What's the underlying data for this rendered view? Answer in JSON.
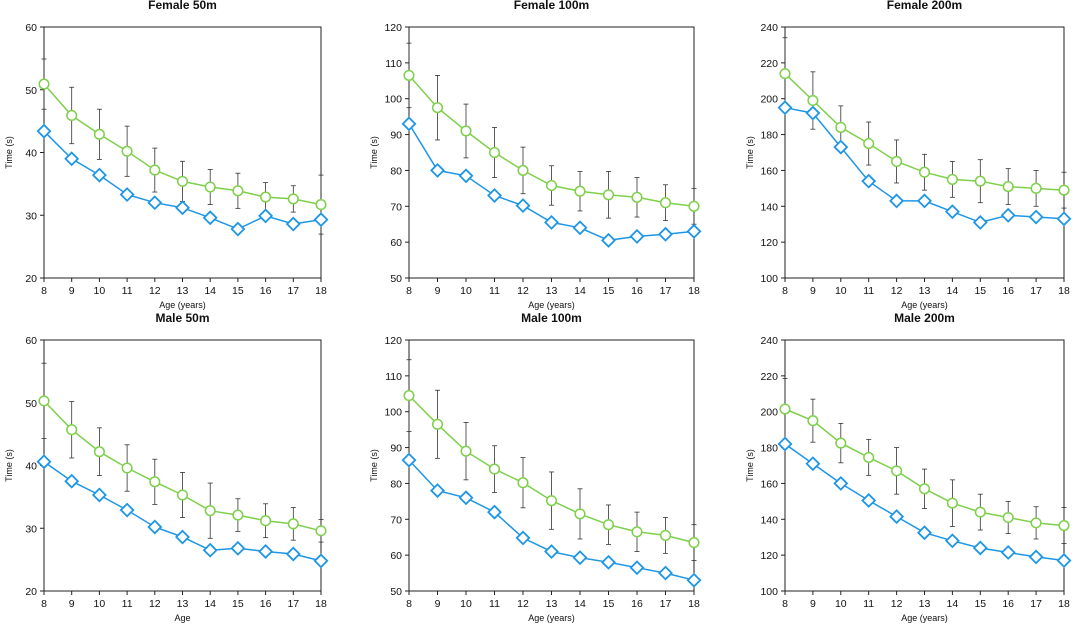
{
  "chart_data": [
    {
      "type": "line",
      "title": "Female 50m",
      "xlabel": "Age (years)",
      "ylabel": "Time (s)",
      "ylim": [
        20,
        60
      ],
      "yticks": [
        20,
        30,
        40,
        50,
        60
      ],
      "x": [
        8,
        9,
        10,
        11,
        12,
        13,
        14,
        15,
        16,
        17,
        18
      ],
      "series": [
        {
          "name": "green-circles",
          "marker": "circle",
          "color": "#7ed04b",
          "values": [
            50.9,
            45.9,
            42.9,
            40.2,
            37.2,
            35.4,
            34.5,
            33.9,
            32.9,
            32.6,
            31.7
          ],
          "err": [
            4.0,
            4.5,
            4.0,
            4.0,
            3.5,
            3.2,
            2.8,
            2.8,
            2.3,
            2.1,
            4.7
          ]
        },
        {
          "name": "blue-diamonds",
          "marker": "diamond",
          "color": "#1e96e6",
          "values": [
            43.4,
            39.0,
            36.4,
            33.3,
            32.0,
            31.2,
            29.6,
            27.8,
            29.9,
            28.6,
            29.3
          ]
        }
      ]
    },
    {
      "type": "line",
      "title": "Female 100m",
      "xlabel": "Age (years)",
      "ylabel": "Time (s)",
      "ylim": [
        50,
        120
      ],
      "yticks": [
        50,
        60,
        70,
        80,
        90,
        100,
        110,
        120
      ],
      "x": [
        8,
        9,
        10,
        11,
        12,
        13,
        14,
        15,
        16,
        17,
        18
      ],
      "series": [
        {
          "name": "green-circles",
          "marker": "circle",
          "color": "#7ed04b",
          "values": [
            106.5,
            97.5,
            91.0,
            85.0,
            80.0,
            75.8,
            74.2,
            73.2,
            72.5,
            71.0,
            70.0
          ],
          "err": [
            9.0,
            9.0,
            7.5,
            7.0,
            6.5,
            5.5,
            5.5,
            6.5,
            5.5,
            5.0,
            5.0
          ]
        },
        {
          "name": "blue-diamonds",
          "marker": "diamond",
          "color": "#1e96e6",
          "values": [
            93.0,
            80.0,
            78.5,
            73.0,
            70.2,
            65.5,
            64.0,
            60.5,
            61.6,
            62.2,
            63.0
          ]
        }
      ]
    },
    {
      "type": "line",
      "title": "Female 200m",
      "xlabel": "Age (years)",
      "ylabel": "Time (s)",
      "ylim": [
        100,
        240
      ],
      "yticks": [
        100,
        120,
        140,
        160,
        180,
        200,
        220,
        240
      ],
      "x": [
        8,
        9,
        10,
        11,
        12,
        13,
        14,
        15,
        16,
        17,
        18
      ],
      "series": [
        {
          "name": "green-circles",
          "marker": "circle",
          "color": "#7ed04b",
          "values": [
            214.0,
            199.0,
            184.0,
            175.0,
            165.0,
            159.0,
            155.0,
            154.0,
            151.0,
            150.0,
            149.0
          ],
          "err": [
            20.0,
            16.0,
            12.0,
            12.0,
            12.0,
            10.0,
            10.0,
            12.0,
            10.0,
            10.0,
            10.0
          ]
        },
        {
          "name": "blue-diamonds",
          "marker": "diamond",
          "color": "#1e96e6",
          "values": [
            195.0,
            192.0,
            173.0,
            154.0,
            143.0,
            143.0,
            137.0,
            131.0,
            135.0,
            134.0,
            133.0
          ]
        }
      ]
    },
    {
      "type": "line",
      "title": "Male 50m",
      "xlabel": "Age",
      "ylabel": "Time (s)",
      "ylim": [
        20,
        60
      ],
      "yticks": [
        20,
        30,
        40,
        50,
        60
      ],
      "x": [
        8,
        9,
        10,
        11,
        12,
        13,
        14,
        15,
        16,
        17,
        18
      ],
      "series": [
        {
          "name": "green-circles",
          "marker": "circle",
          "color": "#7ed04b",
          "values": [
            50.3,
            45.7,
            42.2,
            39.6,
            37.4,
            35.3,
            32.8,
            32.1,
            31.2,
            30.7,
            29.6
          ],
          "err": [
            6.0,
            4.5,
            3.8,
            3.7,
            3.6,
            3.6,
            4.4,
            2.6,
            2.7,
            2.6,
            1.8
          ]
        },
        {
          "name": "blue-diamonds",
          "marker": "diamond",
          "color": "#1e96e6",
          "values": [
            40.6,
            37.5,
            35.3,
            32.9,
            30.2,
            28.6,
            26.5,
            26.8,
            26.3,
            25.9,
            24.8
          ]
        }
      ]
    },
    {
      "type": "line",
      "title": "Male 100m",
      "xlabel": "Age (years)",
      "ylabel": "Time (s)",
      "ylim": [
        50,
        120
      ],
      "yticks": [
        50,
        60,
        70,
        80,
        90,
        100,
        110,
        120
      ],
      "x": [
        8,
        9,
        10,
        11,
        12,
        13,
        14,
        15,
        16,
        17,
        18
      ],
      "series": [
        {
          "name": "green-circles",
          "marker": "circle",
          "color": "#7ed04b",
          "values": [
            104.5,
            96.5,
            89.0,
            84.0,
            80.2,
            75.2,
            71.5,
            68.5,
            66.5,
            65.5,
            63.5
          ],
          "err": [
            10.0,
            9.5,
            8.0,
            6.5,
            7.0,
            8.0,
            7.0,
            5.5,
            5.5,
            5.0,
            5.0
          ]
        },
        {
          "name": "blue-diamonds",
          "marker": "diamond",
          "color": "#1e96e6",
          "values": [
            86.5,
            78.0,
            76.0,
            72.0,
            64.8,
            61.0,
            59.3,
            58.0,
            56.5,
            55.0,
            53.0
          ]
        }
      ]
    },
    {
      "type": "line",
      "title": "Male 200m",
      "xlabel": "Age (years)",
      "ylabel": "Time (s)",
      "ylim": [
        100,
        240
      ],
      "yticks": [
        100,
        120,
        140,
        160,
        180,
        200,
        220,
        240
      ],
      "x": [
        8,
        9,
        10,
        11,
        12,
        13,
        14,
        15,
        16,
        17,
        18
      ],
      "series": [
        {
          "name": "green-circles",
          "marker": "circle",
          "color": "#7ed04b",
          "values": [
            201.5,
            195.0,
            182.5,
            174.5,
            167.0,
            157.0,
            149.0,
            144.0,
            141.0,
            138.0,
            136.5
          ],
          "err": [
            17.0,
            12.0,
            11.0,
            10.0,
            13.0,
            11.0,
            13.0,
            10.0,
            9.0,
            9.0,
            10.0
          ]
        },
        {
          "name": "blue-diamonds",
          "marker": "diamond",
          "color": "#1e96e6",
          "values": [
            182.0,
            171.0,
            160.0,
            150.5,
            141.5,
            132.5,
            128.0,
            124.0,
            121.5,
            119.0,
            117.0
          ]
        }
      ]
    }
  ]
}
